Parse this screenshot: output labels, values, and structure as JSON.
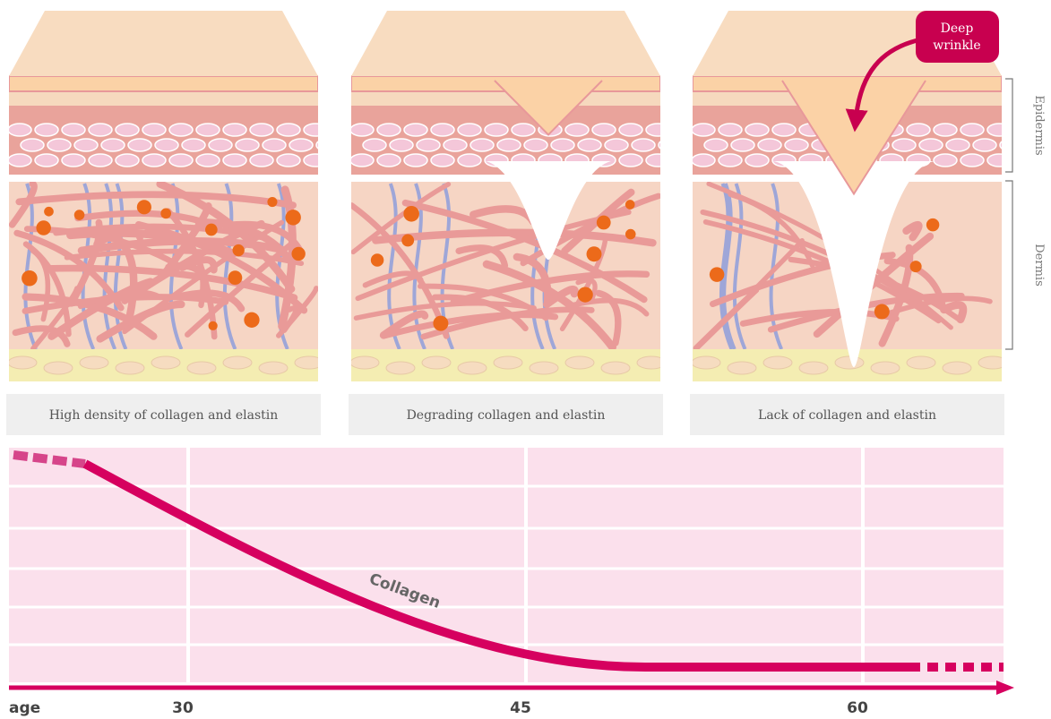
{
  "panels": [
    {
      "caption": "High density of collagen and elastin"
    },
    {
      "caption": "Degrading collagen and elastin"
    },
    {
      "caption": "Lack of collagen and elastin"
    }
  ],
  "callout": [
    "Deep",
    "wrinkle"
  ],
  "layers": [
    "Epidermis",
    "Dermis"
  ],
  "chart": {
    "curve_label": "Collagen",
    "axis_label": "age",
    "ticks": [
      30,
      45,
      60
    ]
  }
}
